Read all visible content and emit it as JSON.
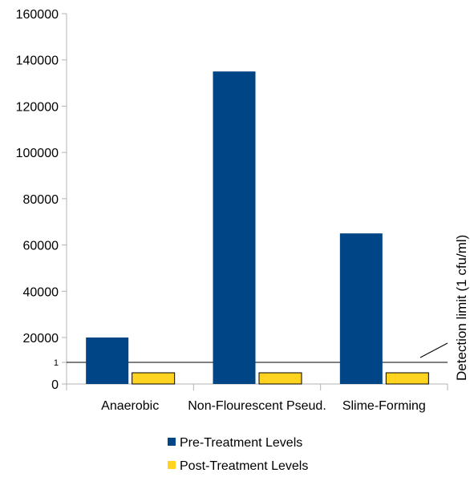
{
  "chart_data": {
    "type": "bar",
    "title": "",
    "xlabel": "",
    "ylabel": "",
    "categories": [
      "Anaerobic",
      "Non-Flourescent Pseud.",
      "Slime-Forming"
    ],
    "series": [
      {
        "name": "Pre-Treatment Levels",
        "color": "#004586",
        "values": [
          20000,
          135000,
          65000
        ]
      },
      {
        "name": "Post-Treatment Levels",
        "color": "#ffd320",
        "values": [
          -0.5,
          -0.5,
          -0.5
        ]
      }
    ],
    "y_ticks": [
      "0",
      "1",
      "20000",
      "40000",
      "60000",
      "80000",
      "100000",
      "120000",
      "140000",
      160000
    ],
    "y_tick_labels": [
      "0",
      "1",
      "20000",
      "40000",
      "60000",
      "80000",
      "100000",
      "120000",
      "140000",
      "160000"
    ],
    "ylim": [
      0,
      160000
    ],
    "y_scale": "custom: 0 to 1 expanded, then linear 20000 to 160000",
    "detection_limit": {
      "value": 1,
      "label": "Detection limit (1 cfu/ml)"
    },
    "grid": false,
    "legend_position": "bottom"
  }
}
